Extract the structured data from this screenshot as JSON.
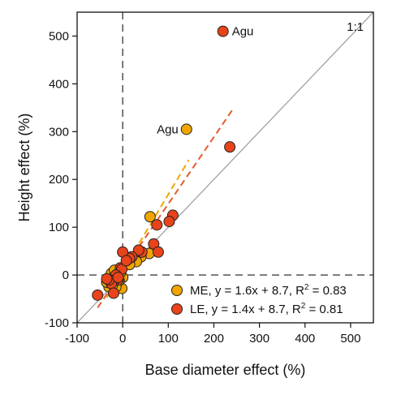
{
  "chart_data": {
    "type": "scatter",
    "xlabel": "Base diameter effect (%)",
    "ylabel": "Height effect (%)",
    "xlim": [
      -100,
      550
    ],
    "ylim": [
      -100,
      550
    ],
    "x_ticks": [
      -100,
      0,
      100,
      200,
      300,
      400,
      500
    ],
    "y_ticks": [
      -100,
      0,
      100,
      200,
      300,
      400,
      500
    ],
    "tick_labels": {
      "x": [
        "-100",
        "0",
        "100",
        "200",
        "300",
        "400",
        "500"
      ],
      "y": [
        "-100",
        "0",
        "100",
        "200",
        "300",
        "400",
        "500"
      ]
    },
    "reference_line_label": "1:1",
    "legend_position": "bottom-right",
    "colors": {
      "ME": "#f0a500",
      "LE": "#e8431a",
      "ME_line": "#f0a500",
      "LE_line": "#e55a2b",
      "one_to_one": "#9a9a9a",
      "zero_lines": "#444444",
      "marker_edge": "#222222"
    },
    "series": [
      {
        "name": "ME",
        "legend": {
          "prefix": "ME, y = 1.6x + 8.7, R",
          "sup": "2",
          "suffix": " = 0.83"
        },
        "fit": {
          "slope": 1.6,
          "intercept": 8.7,
          "x_range": [
            -35,
            145
          ]
        },
        "points": [
          [
            140,
            305
          ],
          [
            60,
            122
          ],
          [
            58,
            45
          ],
          [
            40,
            38
          ],
          [
            30,
            28
          ],
          [
            15,
            22
          ],
          [
            0,
            -5
          ],
          [
            -2,
            -28
          ],
          [
            -5,
            5
          ],
          [
            -8,
            -12
          ],
          [
            -15,
            -25
          ],
          [
            -22,
            -20
          ],
          [
            -25,
            3
          ],
          [
            -30,
            -25
          ],
          [
            -35,
            -15
          ],
          [
            -18,
            10
          ],
          [
            -10,
            -8
          ]
        ],
        "labels": [
          {
            "x": 140,
            "y": 305,
            "text": "Agu",
            "side": "left"
          }
        ]
      },
      {
        "name": "LE",
        "legend": {
          "prefix": "LE, y = 1.4x + 8.7, R",
          "sup": "2",
          "suffix": " = 0.81"
        },
        "fit": {
          "slope": 1.4,
          "intercept": 8.7,
          "x_range": [
            -55,
            240
          ]
        },
        "points": [
          [
            220,
            510
          ],
          [
            235,
            268
          ],
          [
            110,
            125
          ],
          [
            102,
            112
          ],
          [
            75,
            105
          ],
          [
            68,
            65
          ],
          [
            78,
            48
          ],
          [
            42,
            48
          ],
          [
            35,
            52
          ],
          [
            20,
            38
          ],
          [
            15,
            35
          ],
          [
            0,
            48
          ],
          [
            -5,
            15
          ],
          [
            -2,
            12
          ],
          [
            -10,
            -10
          ],
          [
            -15,
            0
          ],
          [
            -20,
            -12
          ],
          [
            -25,
            -18
          ],
          [
            -30,
            -10
          ],
          [
            -35,
            -8
          ],
          [
            -55,
            -42
          ],
          [
            -20,
            -38
          ],
          [
            -10,
            -5
          ],
          [
            8,
            30
          ]
        ],
        "labels": [
          {
            "x": 220,
            "y": 510,
            "text": "Agu",
            "side": "right"
          }
        ]
      }
    ]
  }
}
